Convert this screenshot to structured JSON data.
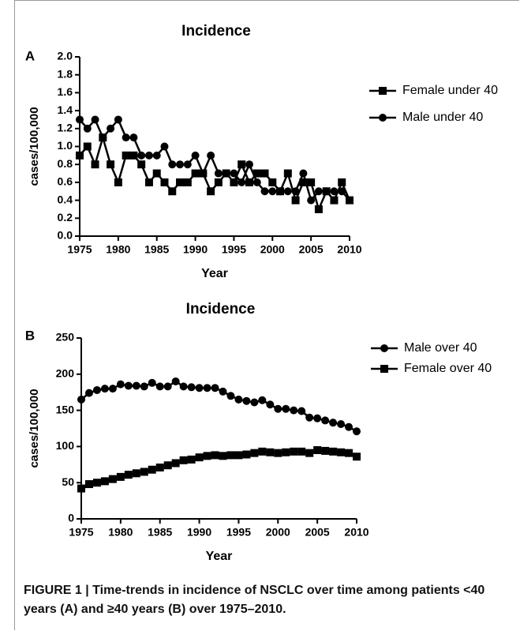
{
  "chart_data": [
    {
      "type": "line",
      "panel": "A",
      "title": "Incidence",
      "xlabel": "Year",
      "ylabel": "cases/100,000",
      "x": [
        1975,
        1976,
        1977,
        1978,
        1979,
        1980,
        1981,
        1982,
        1983,
        1984,
        1985,
        1986,
        1987,
        1988,
        1989,
        1990,
        1991,
        1992,
        1993,
        1994,
        1995,
        1996,
        1997,
        1998,
        1999,
        2000,
        2001,
        2002,
        2003,
        2004,
        2005,
        2006,
        2007,
        2008,
        2009,
        2010
      ],
      "series": [
        {
          "name": "Female under 40",
          "color": "#000000",
          "marker": "square",
          "values": [
            0.9,
            1.0,
            0.8,
            1.1,
            0.8,
            0.6,
            0.9,
            0.9,
            0.8,
            0.6,
            0.7,
            0.6,
            0.5,
            0.6,
            0.6,
            0.7,
            0.7,
            0.5,
            0.6,
            0.7,
            0.6,
            0.8,
            0.6,
            0.7,
            0.7,
            0.6,
            0.5,
            0.7,
            0.4,
            0.6,
            0.6,
            0.3,
            0.5,
            0.4,
            0.6,
            0.4
          ]
        },
        {
          "name": "Male under 40",
          "color": "#000000",
          "marker": "circle",
          "values": [
            1.3,
            1.2,
            1.3,
            1.1,
            1.2,
            1.3,
            1.1,
            1.1,
            0.9,
            0.9,
            0.9,
            1.0,
            0.8,
            0.8,
            0.8,
            0.9,
            0.7,
            0.9,
            0.7,
            0.7,
            0.7,
            0.6,
            0.8,
            0.6,
            0.5,
            0.5,
            0.5,
            0.5,
            0.5,
            0.7,
            0.4,
            0.5,
            0.5,
            0.5,
            0.5,
            0.4
          ]
        }
      ],
      "xlim": [
        1975,
        2010
      ],
      "xticks": [
        1975,
        1980,
        1985,
        1990,
        1995,
        2000,
        2005,
        2010
      ],
      "ylim": [
        0,
        2
      ],
      "yticks": [
        {
          "value": 0,
          "label": "0.0"
        },
        {
          "value": 0.2,
          "label": "0.2"
        },
        {
          "value": 0.4,
          "label": "0.4"
        },
        {
          "value": 0.6,
          "label": "0.6"
        },
        {
          "value": 0.8,
          "label": "0.8"
        },
        {
          "value": 1,
          "label": "1.0"
        },
        {
          "value": 1.2,
          "label": "1.2"
        },
        {
          "value": 1.4,
          "label": "1.4"
        },
        {
          "value": 1.6,
          "label": "1.6"
        },
        {
          "value": 1.8,
          "label": "1.8"
        },
        {
          "value": 2,
          "label": "2.0"
        }
      ],
      "legend": "right",
      "grid": false
    },
    {
      "type": "line",
      "panel": "B",
      "title": "Incidence",
      "xlabel": "Year",
      "ylabel": "cases/100,000",
      "x": [
        1975,
        1976,
        1977,
        1978,
        1979,
        1980,
        1981,
        1982,
        1983,
        1984,
        1985,
        1986,
        1987,
        1988,
        1989,
        1990,
        1991,
        1992,
        1993,
        1994,
        1995,
        1996,
        1997,
        1998,
        1999,
        2000,
        2001,
        2002,
        2003,
        2004,
        2005,
        2006,
        2007,
        2008,
        2009,
        2010
      ],
      "series": [
        {
          "name": "Male over 40",
          "color": "#000000",
          "marker": "circle",
          "values": [
            165,
            174,
            178,
            180,
            180,
            186,
            184,
            184,
            183,
            188,
            183,
            183,
            190,
            183,
            182,
            181,
            181,
            181,
            176,
            170,
            165,
            163,
            161,
            164,
            158,
            152,
            152,
            150,
            149,
            140,
            139,
            136,
            133,
            131,
            127,
            121
          ]
        },
        {
          "name": "Female over 40",
          "color": "#000000",
          "marker": "square",
          "values": [
            42,
            48,
            50,
            52,
            55,
            58,
            61,
            63,
            65,
            68,
            71,
            74,
            77,
            81,
            82,
            85,
            87,
            88,
            87,
            88,
            88,
            89,
            91,
            93,
            92,
            91,
            92,
            93,
            93,
            91,
            95,
            94,
            93,
            92,
            91,
            86
          ]
        }
      ],
      "xlim": [
        1975,
        2010
      ],
      "xticks": [
        1975,
        1980,
        1985,
        1990,
        1995,
        2000,
        2005,
        2010
      ],
      "ylim": [
        0,
        250
      ],
      "yticks": [
        0,
        50,
        100,
        150,
        200,
        250
      ],
      "legend": "right",
      "grid": false
    }
  ],
  "caption": "FIGURE 1 | Time-trends in incidence of NSCLC over time among patients <40 years (A) and ≥40 years (B) over 1975–2010."
}
